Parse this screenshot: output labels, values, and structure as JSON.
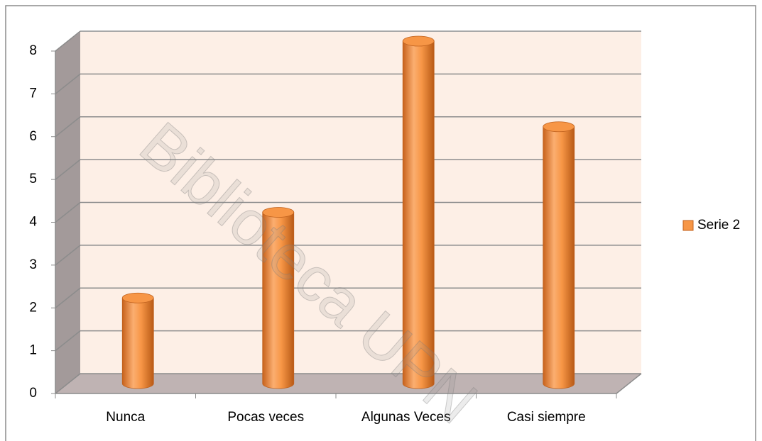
{
  "chart_data": {
    "type": "bar",
    "categories": [
      "Nunca",
      "Pocas veces",
      "Algunas Veces",
      "Casi siempre"
    ],
    "series": [
      {
        "name": "Serie 2",
        "color": "#f79646",
        "values": [
          2,
          4,
          8,
          6
        ]
      }
    ],
    "ylim": [
      0,
      8
    ],
    "yticks": [
      0,
      1,
      2,
      3,
      4,
      5,
      6,
      7,
      8
    ],
    "grid": true,
    "legend": "right",
    "watermark": "Biblioteca UPN"
  }
}
